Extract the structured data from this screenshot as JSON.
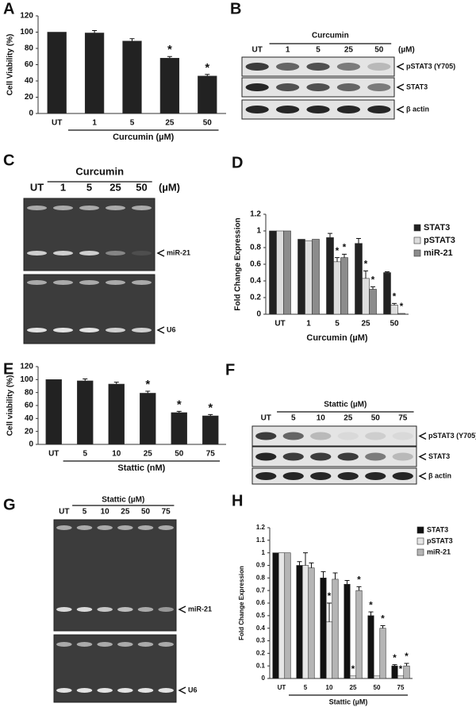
{
  "chart_data": [
    {
      "type": "bar",
      "label": "A",
      "ylabel": "Cell Viability (%)",
      "xlabel": "Curcumin (µM)",
      "group_line": true,
      "categories": [
        "UT",
        "1",
        "5",
        "25",
        "50"
      ],
      "values": [
        100,
        99,
        89,
        68,
        46
      ],
      "errors": [
        0,
        3,
        3,
        2,
        2
      ],
      "stars": [
        null,
        null,
        null,
        "*",
        "*"
      ],
      "color": "#222222",
      "ylim": [
        0,
        120
      ],
      "yticks": [
        0,
        20,
        40,
        60,
        80,
        100,
        120
      ]
    },
    {
      "type": "bar",
      "label": "D",
      "ylabel": "Fold Change Expression",
      "xlabel": "Curcumin (µM)",
      "group_line": false,
      "categories": [
        "UT",
        "1",
        "5",
        "25",
        "50"
      ],
      "series": [
        {
          "name": "STAT3",
          "color": "#222222",
          "values": [
            1,
            0.9,
            0.92,
            0.85,
            0.5
          ],
          "errors": [
            0,
            0,
            0.05,
            0.06,
            0.01
          ],
          "stars": [
            null,
            null,
            null,
            null,
            null
          ]
        },
        {
          "name": "pSTAT3",
          "color": "#dddddd",
          "values": [
            1,
            0.88,
            0.63,
            0.43,
            0.11
          ],
          "errors": [
            0,
            0,
            0.05,
            0.09,
            0.02
          ],
          "stars": [
            null,
            null,
            "*",
            "*",
            "*"
          ]
        },
        {
          "name": "miR-21",
          "color": "#8c8c8c",
          "values": [
            1,
            0.9,
            0.68,
            0.3,
            0.01
          ],
          "errors": [
            0,
            0,
            0.04,
            0.03,
            0
          ],
          "stars": [
            null,
            null,
            "*",
            "*",
            "*"
          ]
        }
      ],
      "ylim": [
        0,
        1.2
      ],
      "yticks": [
        0,
        0.2,
        0.4,
        0.6,
        0.8,
        1,
        1.2
      ]
    },
    {
      "type": "bar",
      "label": "E",
      "ylabel": "Cell viability (%)",
      "xlabel": "Stattic (nM)",
      "group_line": true,
      "categories": [
        "UT",
        "5",
        "10",
        "25",
        "50",
        "75"
      ],
      "values": [
        100,
        98,
        93,
        79,
        49,
        44
      ],
      "errors": [
        0,
        3,
        3,
        3,
        2,
        2
      ],
      "stars": [
        null,
        null,
        null,
        "*",
        "*",
        "*"
      ],
      "color": "#222222",
      "ylim": [
        0,
        120
      ],
      "yticks": [
        0,
        20,
        40,
        60,
        80,
        100,
        120
      ]
    },
    {
      "type": "bar",
      "label": "H",
      "ylabel": "Fold Change Expression",
      "xlabel": "Stattic (µM)",
      "group_line": true,
      "categories": [
        "UT",
        "5",
        "10",
        "25",
        "50",
        "75"
      ],
      "series": [
        {
          "name": "STAT3",
          "color": "#111111",
          "values": [
            1,
            0.9,
            0.8,
            0.75,
            0.5,
            0.1
          ],
          "errors": [
            0,
            0.03,
            0.05,
            0.03,
            0.03,
            0.01
          ],
          "stars": [
            null,
            null,
            null,
            null,
            "*",
            "*"
          ]
        },
        {
          "name": "pSTAT3",
          "color": "#e6e6e6",
          "values": [
            1,
            0.9,
            0.45,
            0.02,
            0.02,
            0.02
          ],
          "errors": [
            0,
            0.1,
            0.15,
            0,
            0,
            0
          ],
          "stars": [
            null,
            null,
            "*",
            "*",
            null,
            "*"
          ]
        },
        {
          "name": "miR-21",
          "color": "#b5b5b5",
          "values": [
            1,
            0.88,
            0.79,
            0.7,
            0.4,
            0.1
          ],
          "errors": [
            0,
            0.04,
            0.05,
            0.03,
            0.02,
            0.02
          ],
          "stars": [
            null,
            null,
            null,
            "*",
            "*",
            "*"
          ]
        }
      ],
      "ylim": [
        0,
        1.2
      ],
      "yticks": [
        0,
        0.1,
        0.2,
        0.3,
        0.4,
        0.5,
        0.6,
        0.7,
        0.8,
        0.9,
        1,
        1.1,
        1.2
      ]
    }
  ],
  "blots": [
    {
      "label": "B",
      "lanes": [
        "UT",
        "1",
        "5",
        "25",
        "50"
      ],
      "treatment": "Curcumin",
      "unit": "(µM)",
      "bands": [
        "pSTAT3 (Y705)",
        "STAT3",
        "β actin"
      ]
    },
    {
      "label": "C",
      "lanes": [
        "UT",
        "1",
        "5",
        "25",
        "50"
      ],
      "treatment": "Curcumin",
      "unit": "(µM)",
      "bands": [
        "miR-21",
        "U6"
      ]
    },
    {
      "label": "F",
      "lanes": [
        "UT",
        "5",
        "10",
        "25",
        "50",
        "75"
      ],
      "treatment": "Stattic (µM)",
      "bands": [
        "pSTAT3 (Y705)",
        "STAT3",
        "β actin"
      ]
    },
    {
      "label": "G",
      "lanes": [
        "UT",
        "5",
        "10",
        "25",
        "50",
        "75"
      ],
      "treatment": "Stattic (µM)",
      "bands": [
        "miR-21",
        "U6"
      ]
    }
  ]
}
